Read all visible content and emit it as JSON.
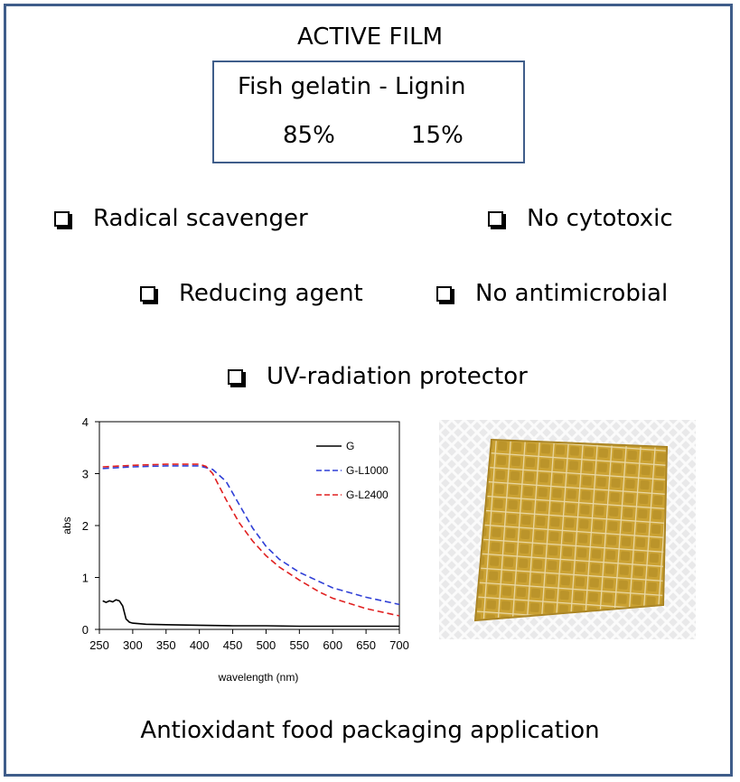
{
  "title": "ACTIVE FILM",
  "composition": {
    "header": "Fish gelatin - Lignin",
    "gelatin_pct": "85%",
    "lignin_pct": "15%"
  },
  "properties": {
    "radical_scavenger": "Radical scavenger",
    "no_cytotoxic": "No cytotoxic",
    "reducing_agent": "Reducing agent",
    "no_antimicrobial": "No antimicrobial",
    "uv_protector": "UV-radiation protector"
  },
  "footer": "Antioxidant food packaging application",
  "chart_data": {
    "type": "line",
    "xlabel": "wavelength (nm)",
    "ylabel": "abs",
    "xlim": [
      250,
      700
    ],
    "ylim": [
      0,
      4
    ],
    "xticks": [
      250,
      300,
      350,
      400,
      450,
      500,
      550,
      600,
      650,
      700
    ],
    "yticks": [
      0,
      1,
      2,
      3,
      4
    ],
    "legend_position": "top-right",
    "series": [
      {
        "name": "G",
        "color": "#000000",
        "dash": "solid",
        "x": [
          255,
          260,
          265,
          270,
          275,
          280,
          285,
          290,
          295,
          300,
          320,
          350,
          400,
          450,
          500,
          550,
          600,
          650,
          700
        ],
        "y": [
          0.55,
          0.52,
          0.55,
          0.53,
          0.57,
          0.55,
          0.45,
          0.2,
          0.14,
          0.12,
          0.1,
          0.09,
          0.08,
          0.07,
          0.07,
          0.06,
          0.06,
          0.06,
          0.06
        ]
      },
      {
        "name": "G-L1000",
        "color": "#2f3fd6",
        "dash": "dashed",
        "x": [
          255,
          300,
          350,
          400,
          420,
          440,
          460,
          480,
          500,
          520,
          550,
          580,
          600,
          650,
          700
        ],
        "y": [
          3.1,
          3.13,
          3.15,
          3.15,
          3.08,
          2.85,
          2.4,
          1.95,
          1.6,
          1.35,
          1.1,
          0.92,
          0.8,
          0.62,
          0.48
        ]
      },
      {
        "name": "G-L2400",
        "color": "#e02020",
        "dash": "dashed",
        "x": [
          255,
          300,
          350,
          400,
          410,
          420,
          440,
          460,
          480,
          500,
          520,
          550,
          580,
          600,
          650,
          700
        ],
        "y": [
          3.13,
          3.16,
          3.18,
          3.18,
          3.14,
          3.0,
          2.5,
          2.05,
          1.7,
          1.42,
          1.2,
          0.95,
          0.72,
          0.6,
          0.4,
          0.26
        ]
      }
    ]
  },
  "photo": {
    "mat_color": "#c79b22",
    "grid_color": "#f3e9c8",
    "background_color": "#e9e9ea"
  }
}
